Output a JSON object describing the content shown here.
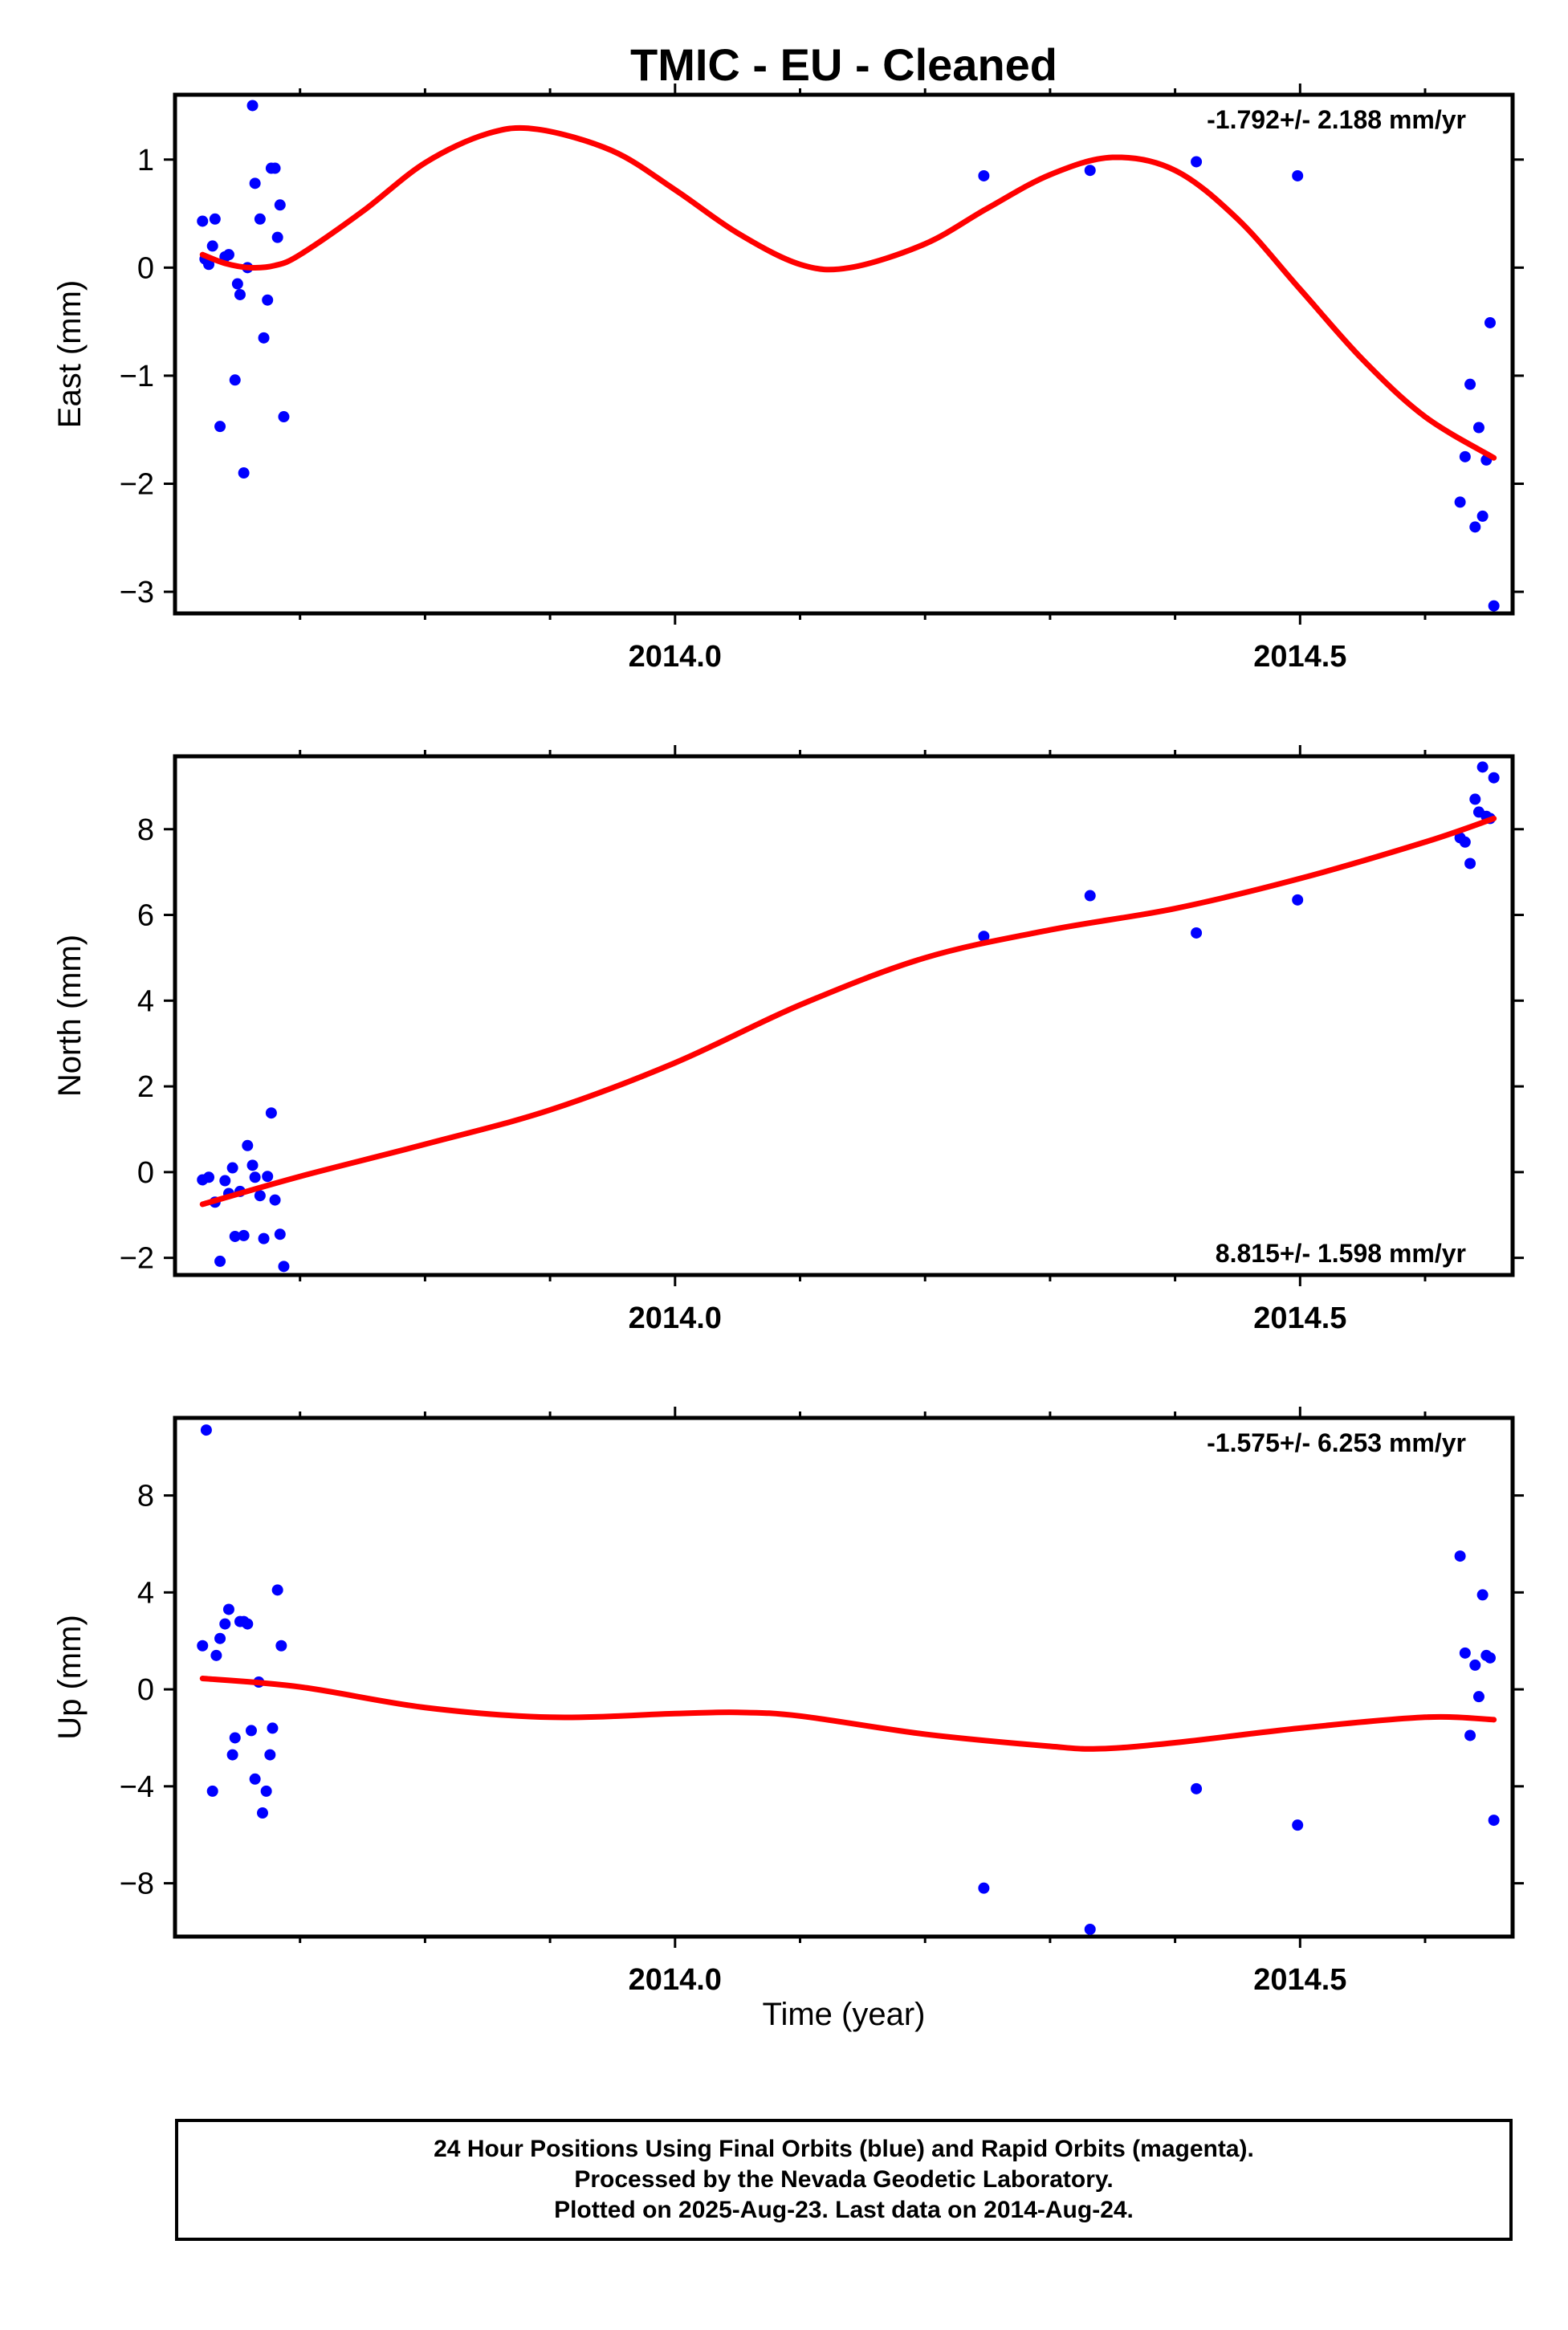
{
  "title": "TMIC  - EU - Cleaned",
  "xlabel": "Time (year)",
  "footer": {
    "line1": "24 Hour Positions Using Final Orbits (blue) and Rapid Orbits (magenta).",
    "line2": "Processed by the Nevada Geodetic Laboratory.",
    "line3": "Plotted on 2025-Aug-23. Last data on 2014-Aug-24."
  },
  "colors": {
    "points": "#0000ff",
    "fit": "#ff0000",
    "axes": "#000000"
  },
  "chart_data": [
    {
      "type": "scatter",
      "ylabel": "East (mm)",
      "rate_label": "-1.792+/- 2.188 mm/yr",
      "rate_position": "top-right",
      "xlim": [
        2013.6,
        2014.67
      ],
      "ylim": [
        -3.2,
        1.6
      ],
      "xticks": [
        2014.0,
        2014.5
      ],
      "xticklabels": [
        "2014.0",
        "2014.5"
      ],
      "xminor": [
        2013.7,
        2013.8,
        2013.9,
        2014.1,
        2014.2,
        2014.3,
        2014.4,
        2014.6
      ],
      "yticks": [
        1,
        0,
        -1,
        -2,
        -3
      ],
      "yticklabels": [
        "1",
        "0",
        "−1",
        "−2",
        "−3"
      ],
      "series": [
        {
          "style": "points",
          "x": [
            2013.622,
            2013.624,
            2013.627,
            2013.63,
            2013.632,
            2013.636,
            2013.64,
            2013.643,
            2013.648,
            2013.65,
            2013.652,
            2013.655,
            2013.658,
            2013.662,
            2013.664,
            2013.668,
            2013.671,
            2013.674,
            2013.677,
            2013.68,
            2013.682,
            2013.684,
            2013.687,
            2014.247,
            2014.332,
            2014.417,
            2014.498,
            2014.628,
            2014.632,
            2014.636,
            2014.64,
            2014.643,
            2014.646,
            2014.649,
            2014.652,
            2014.655
          ],
          "y": [
            0.43,
            0.08,
            0.03,
            0.2,
            0.45,
            -1.47,
            0.1,
            0.12,
            -1.04,
            -0.15,
            -0.25,
            -1.9,
            0.0,
            1.5,
            0.78,
            0.45,
            -0.65,
            -0.3,
            0.92,
            0.92,
            0.28,
            0.58,
            -1.38,
            0.85,
            0.9,
            0.98,
            0.85,
            -2.17,
            -1.75,
            -1.08,
            -2.4,
            -1.48,
            -2.3,
            -1.78,
            -0.51,
            -3.13
          ]
        },
        {
          "style": "line",
          "x": [
            2013.622,
            2013.64,
            2013.66,
            2013.68,
            2013.7,
            2013.75,
            2013.8,
            2013.85,
            2013.89,
            2013.95,
            2014.0,
            2014.05,
            2014.1,
            2014.14,
            2014.2,
            2014.25,
            2014.3,
            2014.35,
            2014.4,
            2014.45,
            2014.5,
            2014.55,
            2014.6,
            2014.655
          ],
          "y": [
            0.12,
            0.04,
            0.0,
            0.02,
            0.12,
            0.52,
            0.97,
            1.24,
            1.28,
            1.08,
            0.72,
            0.32,
            0.03,
            0.0,
            0.22,
            0.55,
            0.86,
            1.02,
            0.9,
            0.45,
            -0.2,
            -0.85,
            -1.38,
            -1.76
          ]
        }
      ]
    },
    {
      "type": "scatter",
      "ylabel": "North (mm)",
      "rate_label": "8.815+/- 1.598 mm/yr",
      "rate_position": "bottom-right",
      "xlim": [
        2013.6,
        2014.67
      ],
      "ylim": [
        -2.4,
        9.7
      ],
      "xticks": [
        2014.0,
        2014.5
      ],
      "xticklabels": [
        "2014.0",
        "2014.5"
      ],
      "xminor": [
        2013.7,
        2013.8,
        2013.9,
        2014.1,
        2014.2,
        2014.3,
        2014.4,
        2014.6
      ],
      "yticks": [
        8,
        6,
        4,
        2,
        0,
        -2
      ],
      "yticklabels": [
        "8",
        "6",
        "4",
        "2",
        "0",
        "−2"
      ],
      "series": [
        {
          "style": "points",
          "x": [
            2013.622,
            2013.627,
            2013.632,
            2013.636,
            2013.64,
            2013.643,
            2013.646,
            2013.648,
            2013.652,
            2013.655,
            2013.658,
            2013.662,
            2013.664,
            2013.668,
            2013.671,
            2013.674,
            2013.677,
            2013.68,
            2013.684,
            2013.687,
            2014.247,
            2014.332,
            2014.417,
            2014.498,
            2014.628,
            2014.632,
            2014.636,
            2014.64,
            2014.643,
            2014.646,
            2014.649,
            2014.652,
            2014.655
          ],
          "y": [
            -0.18,
            -0.12,
            -0.7,
            -2.08,
            -0.2,
            -0.5,
            0.1,
            -1.5,
            -0.45,
            -1.48,
            0.62,
            0.16,
            -0.12,
            -0.55,
            -1.55,
            -0.1,
            1.38,
            -0.65,
            -1.45,
            -2.2,
            5.5,
            6.45,
            5.58,
            6.35,
            7.8,
            7.7,
            7.2,
            8.7,
            8.4,
            9.45,
            8.3,
            8.25,
            9.2
          ]
        },
        {
          "style": "line",
          "x": [
            2013.622,
            2013.7,
            2013.8,
            2013.9,
            2014.0,
            2014.1,
            2014.2,
            2014.3,
            2014.4,
            2014.5,
            2014.6,
            2014.655
          ],
          "y": [
            -0.75,
            -0.1,
            0.65,
            1.45,
            2.55,
            3.9,
            5.0,
            5.65,
            6.15,
            6.85,
            7.7,
            8.25
          ]
        }
      ]
    },
    {
      "type": "scatter",
      "ylabel": "Up (mm)",
      "rate_label": "-1.575+/- 6.253 mm/yr",
      "rate_position": "top-right",
      "xlim": [
        2013.6,
        2014.67
      ],
      "ylim": [
        -10.2,
        11.2
      ],
      "xticks": [
        2014.0,
        2014.5
      ],
      "xticklabels": [
        "2014.0",
        "2014.5"
      ],
      "xminor": [
        2013.7,
        2013.8,
        2013.9,
        2014.1,
        2014.2,
        2014.3,
        2014.4,
        2014.6
      ],
      "yticks": [
        8,
        4,
        0,
        -4,
        -8
      ],
      "yticklabels": [
        "8",
        "4",
        "0",
        "−4",
        "−8"
      ],
      "series": [
        {
          "style": "points",
          "x": [
            2013.622,
            2013.625,
            2013.63,
            2013.633,
            2013.636,
            2013.64,
            2013.643,
            2013.646,
            2013.648,
            2013.652,
            2013.655,
            2013.658,
            2013.661,
            2013.664,
            2013.667,
            2013.67,
            2013.673,
            2013.676,
            2013.678,
            2013.682,
            2013.685,
            2014.247,
            2014.332,
            2014.417,
            2014.498,
            2014.628,
            2014.632,
            2014.636,
            2014.64,
            2014.643,
            2014.646,
            2014.649,
            2014.652,
            2014.655
          ],
          "y": [
            1.8,
            10.7,
            -4.2,
            1.4,
            2.1,
            2.7,
            3.3,
            -2.7,
            -2.0,
            2.8,
            2.8,
            2.7,
            -1.7,
            -3.7,
            0.3,
            -5.1,
            -4.2,
            -2.7,
            -1.6,
            4.1,
            1.8,
            -8.2,
            -9.9,
            -4.1,
            -5.6,
            5.5,
            1.5,
            -1.9,
            1.0,
            -0.3,
            3.9,
            1.4,
            1.3,
            -5.4
          ]
        },
        {
          "style": "line",
          "x": [
            2013.622,
            2013.7,
            2013.8,
            2013.9,
            2014.0,
            2014.05,
            2014.1,
            2014.2,
            2014.3,
            2014.34,
            2014.4,
            2014.5,
            2014.6,
            2014.655
          ],
          "y": [
            0.45,
            0.1,
            -0.75,
            -1.15,
            -1.0,
            -0.95,
            -1.1,
            -1.85,
            -2.35,
            -2.45,
            -2.2,
            -1.6,
            -1.15,
            -1.25
          ]
        }
      ]
    }
  ]
}
